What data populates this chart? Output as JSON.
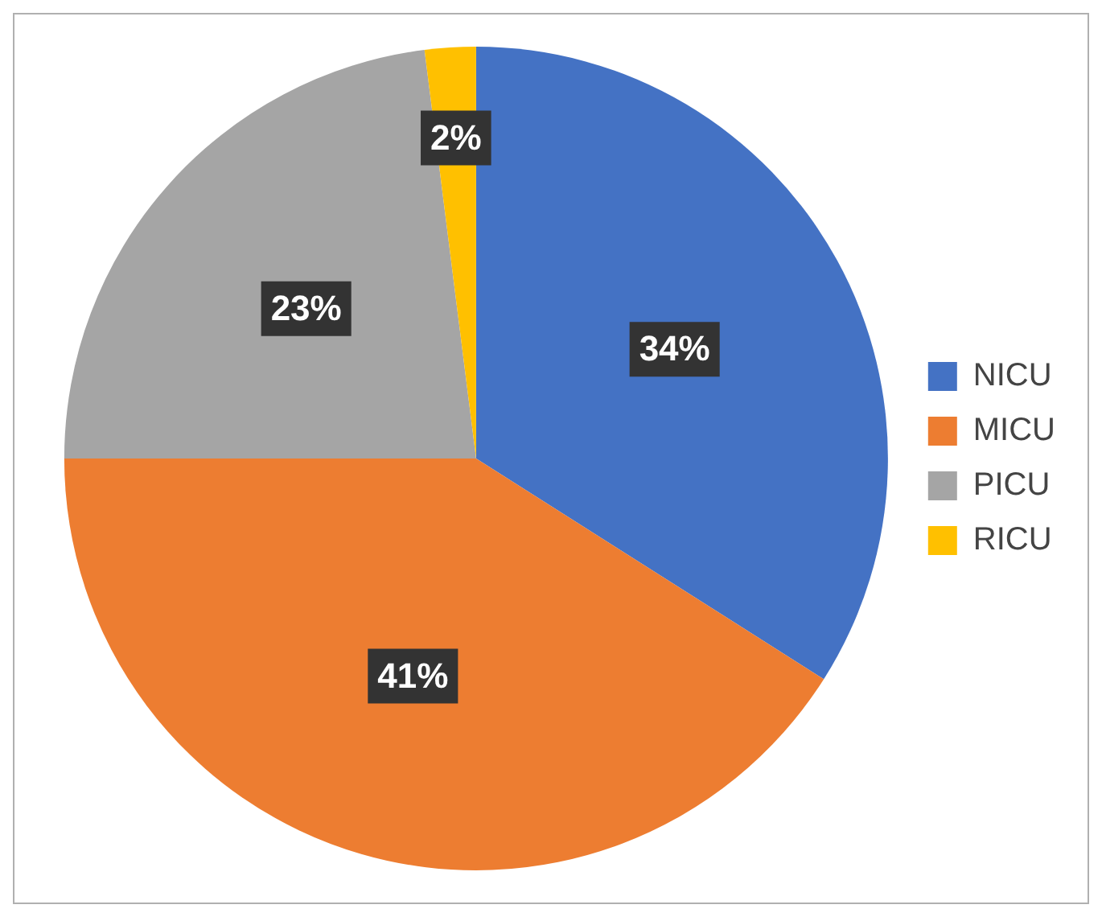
{
  "chart_data": {
    "type": "pie",
    "categories": [
      "NICU",
      "MICU",
      "PICU",
      "RICU"
    ],
    "values": [
      34,
      41,
      23,
      2
    ],
    "colors": [
      "#4472c4",
      "#ed7d31",
      "#a5a5a5",
      "#ffc000"
    ],
    "value_labels": [
      "34%",
      "41%",
      "23%",
      "2%"
    ],
    "legend": "right"
  }
}
